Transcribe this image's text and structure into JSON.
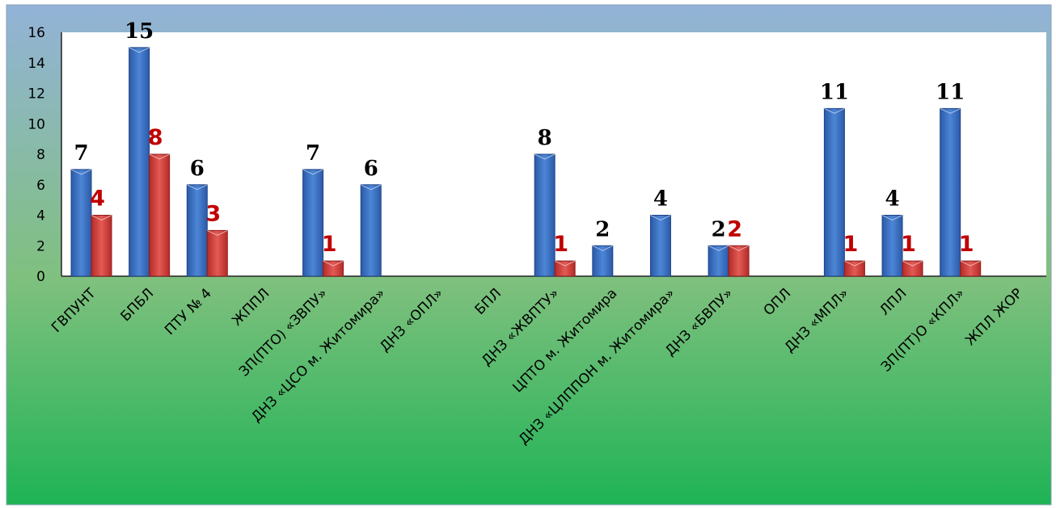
{
  "chart_data": {
    "type": "bar",
    "categories": [
      "ГВПУНТ",
      "БПБЛ",
      "ПТУ № 4",
      "ЖППЛ",
      "ЗП(ПТО)  «ЗВПУ»",
      "ДНЗ «ЦСО м. Житомира»",
      "ДНЗ «ОПЛ»",
      "БПЛ",
      "ДНЗ «ЖВПТУ»",
      "ЦПТО м. Житомира",
      "ДНЗ «ЦЛППОН м. Житомира»",
      "ДНЗ «БВПУ»",
      "ОПЛ",
      "ДНЗ «МПЛ»",
      "ЛПЛ",
      "ЗП(ПТ)О «КПЛ»",
      "ЖПЛ ЖОР"
    ],
    "series": [
      {
        "values": [
          7,
          15,
          6,
          0,
          7,
          6,
          0,
          0,
          8,
          2,
          4,
          2,
          0,
          11,
          4,
          11,
          0
        ],
        "color": "#3a6fc4"
      },
      {
        "values": [
          4,
          8,
          3,
          0,
          1,
          0,
          0,
          0,
          1,
          0,
          0,
          2,
          0,
          1,
          1,
          1,
          0
        ],
        "color": "#d9443f"
      }
    ],
    "data_labels": [
      [
        "7",
        "15",
        "6",
        "",
        "7",
        "6",
        "",
        "",
        "8",
        "2",
        "4",
        "2",
        "",
        "11",
        "4",
        "11",
        ""
      ],
      [
        "4",
        "8",
        "3",
        "",
        "1",
        "",
        "",
        "",
        "1",
        "",
        "",
        "2",
        "",
        "1",
        "1",
        "1",
        ""
      ]
    ],
    "yticks": [
      "0",
      "2",
      "4",
      "6",
      "8",
      "10",
      "12",
      "14",
      "16"
    ],
    "ylim": [
      0,
      16
    ],
    "grid": false,
    "legend": "none",
    "title": "",
    "xlabel": "",
    "ylabel": ""
  },
  "colors": {
    "bg_top": "#93b3d8",
    "bg_bottom": "#1fb356",
    "plot_bg": "#ffffff",
    "blue_label": "#000000",
    "red_label": "#c00000"
  }
}
